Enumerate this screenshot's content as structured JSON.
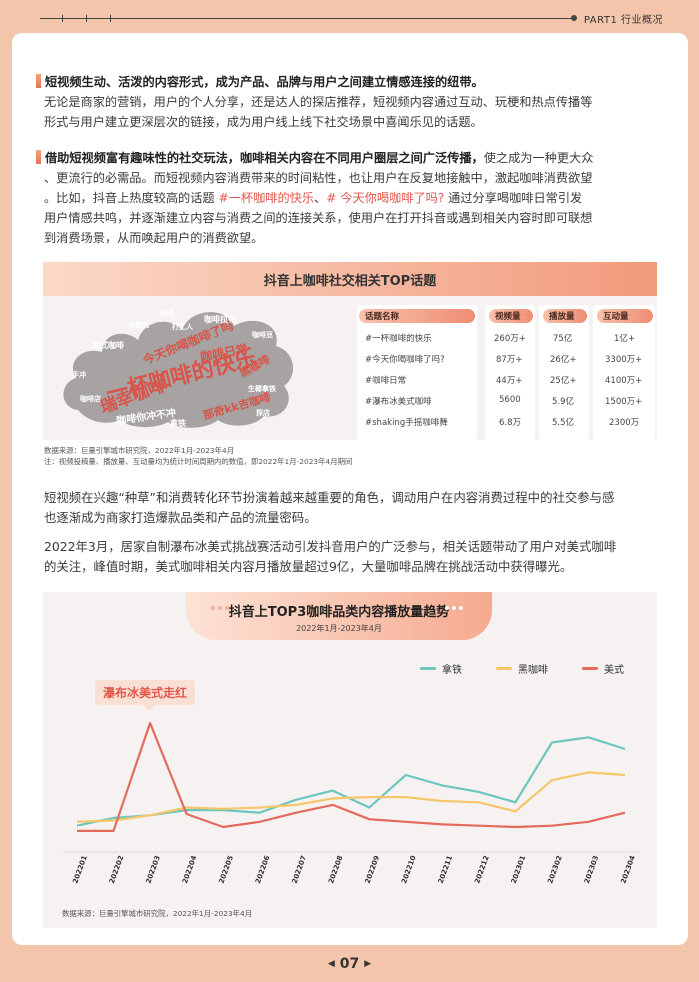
{
  "header": {
    "section": "PART1 行业概况"
  },
  "para1": {
    "bold": "短视频生动、活泼的内容形式，成为产品、品牌与用户之间建立情感连接的纽带。",
    "lines": [
      "无论是商家的营销，用户的个人分享，还是达人的探店推荐，短视频内容通过互动、玩梗和热点传播等",
      "形式与用户建立更深层次的链接，成为用户线上线下社交场景中喜闻乐见的话题。"
    ]
  },
  "para2": {
    "bold": "借助短视频富有趣味性的社交玩法，咖啡相关内容在不同用户圈层之间广泛传播，",
    "tail1": "使之成为一种更大众",
    "line2": "、更流行的必需品。而短视频内容消费带来的时间粘性，也让用户在反复地接触中，激起咖啡消费欲望",
    "line3a": "。比如，抖音上热度较高的话题 ",
    "tag1": "#一杯咖啡的快乐",
    "sep": "、",
    "tag2": "# 今天你喝咖啡了吗?",
    "line3b": "  通过分享喝咖啡日常引发",
    "line4": "用户情感共鸣，并逐渐建立内容与消费之间的连接关系，使用户在打开抖音或遇到相关内容时即可联想",
    "line5": "到消费场景，从而唤起用户的消费欲望。"
  },
  "panel1": {
    "title": "抖音上咖啡社交相关TOP话题",
    "wordcloud": [
      "一杯咖啡的快乐",
      "瑞幸咖啡",
      "今天你喝咖啡了吗",
      "咖啡日常",
      "黑咖啡",
      "那奇kk吉咖啡",
      "咖啡你冲不冲",
      "咖啡拉花",
      "美式咖啡",
      "拿铁",
      "咖啡豆",
      "手冲",
      "生椰拿铁",
      "打工人",
      "咖啡店",
      "探店",
      "冰美式",
      "好喝"
    ],
    "table": {
      "headers": [
        "话题名称",
        "视频量",
        "播放量",
        "互动量"
      ],
      "rows": [
        [
          "#一杯咖啡的快乐",
          "260万+",
          "75亿",
          "1亿+"
        ],
        [
          "#今天你喝咖啡了吗?",
          "87万+",
          "26亿+",
          "3300万+"
        ],
        [
          "#咖啡日常",
          "44万+",
          "25亿+",
          "4100万+"
        ],
        [
          "#瀑布冰美式咖啡",
          "5600",
          "5.9亿",
          "1500万+"
        ],
        [
          "#shaking手摇咖啡舞",
          "6.8万",
          "5.5亿",
          "2300万"
        ]
      ]
    },
    "source": "数据来源：巨量引擎城市研究院，2022年1月-2023年4月",
    "note": "注：视频投稿量、播放量、互动量均为统计时间周期内的数值，即2022年1月-2023年4月期间"
  },
  "para3": [
    "短视频在兴趣“种草”和消费转化环节扮演着越来越重要的角色，调动用户在内容消费过程中的社交参与感",
    "也逐渐成为商家打造爆款品类和产品的流量密码。"
  ],
  "para4": [
    "2022年3月，居家自制瀑布冰美式挑战赛活动引发抖音用户的广泛参与，相关话题带动了用户对美式咖啡",
    "的关注，峰值时期，美式咖啡相关内容月播放量超过9亿，大量咖啡品牌在挑战活动中获得曝光。"
  ],
  "chart_data": {
    "type": "line",
    "title": "抖音上TOP3咖啡品类内容播放量趋势",
    "subtitle": "2022年1月-2023年4月",
    "annotation": "瀑布冰美式走红",
    "x": [
      "202201",
      "202202",
      "202203",
      "202204",
      "202205",
      "202206",
      "202207",
      "202208",
      "202209",
      "202210",
      "202211",
      "202212",
      "202301",
      "202302",
      "202303",
      "202304"
    ],
    "series": [
      {
        "name": "拿铁",
        "color": "#6cc6be",
        "values": [
          11,
          17,
          19,
          23,
          23,
          21,
          31,
          38,
          25,
          50,
          42,
          37,
          29,
          75,
          79,
          70
        ]
      },
      {
        "name": "黑咖啡",
        "color": "#f6c66a",
        "values": [
          14,
          15,
          19,
          25,
          24,
          25,
          27,
          32,
          33,
          33,
          30,
          29,
          22,
          46,
          52,
          50
        ]
      },
      {
        "name": "美式",
        "color": "#e46a5c",
        "values": [
          7,
          7,
          90,
          20,
          10,
          14,
          21,
          27,
          16,
          14,
          12,
          11,
          10,
          11,
          14,
          21
        ]
      }
    ],
    "ylim": [
      0,
      100
    ],
    "source": "数据来源：巨量引擎城市研究院，2022年1月-2023年4月"
  },
  "footer": {
    "page": "07",
    "prev": "◀",
    "next": "▶"
  }
}
